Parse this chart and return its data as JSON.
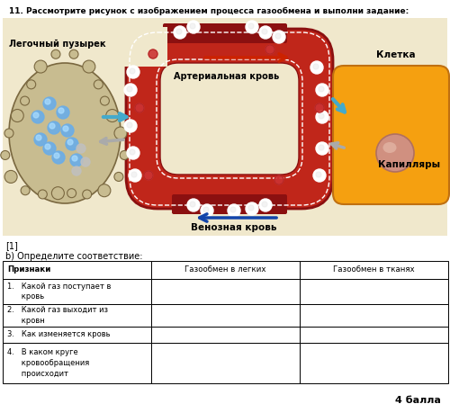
{
  "title_text": "11. Рассмотрите рисунок с изображением процесса газообмена и выполни задание:",
  "bg_color": "#f0e8cc",
  "white_bg": "#ffffff",
  "table_header": [
    "Признаки",
    "Газообмен в легких",
    "Газообмен в тканях"
  ],
  "table_rows": [
    [
      "1.   Какой газ поступает в\n      кровь",
      "",
      ""
    ],
    [
      "2.   Какой газ выходит из\n      кровн",
      "",
      ""
    ],
    [
      "3.   Как изменяется кровь",
      "",
      ""
    ],
    [
      "4.   В каком круге\n      кровообращения\n      происходит",
      "",
      ""
    ]
  ],
  "label_legochny": "Легочный пузырек",
  "label_arterial": "Артериальная кровь",
  "label_kletka": "Клетка",
  "label_kapillyary": "Капилляры",
  "label_venous": "Венозная кровь",
  "score_text": "[1]\nb) Определите соответствие:",
  "balls_text": "4 балла",
  "vessel_red": "#c0261a",
  "vessel_dark": "#8b1010",
  "vessel_light": "#e05030",
  "lung_color": "#c8bc90",
  "lung_edge": "#7a6840",
  "cell_color": "#f5a010",
  "cell_edge": "#c07010",
  "nucleus_color": "#d09080",
  "o2_color": "#6aade8",
  "co2_color": "#c0c0c0",
  "arrow_red": "#cc2200",
  "arrow_blue": "#1144aa",
  "arrow_cyan": "#44aacc"
}
